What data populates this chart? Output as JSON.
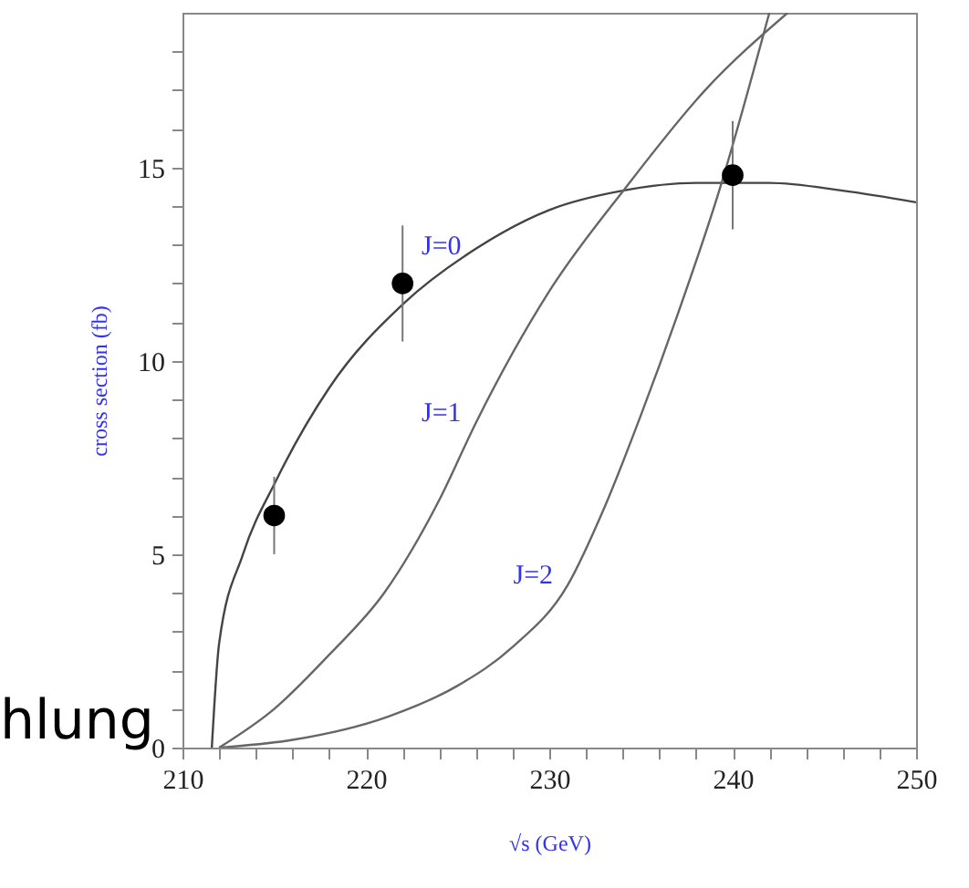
{
  "chart_data": {
    "type": "line",
    "xlabel": "√s (GeV)",
    "ylabel": "cross section (fb)",
    "xlim": [
      210,
      250
    ],
    "ylim": [
      0,
      19
    ],
    "xticks": [
      210,
      {
        "value": 212,
        "label": null
      },
      {
        "value": 214,
        "label": null
      },
      {
        "value": 216,
        "label": null
      },
      {
        "value": 218,
        "label": null
      },
      220,
      {
        "value": 222,
        "label": null
      },
      {
        "value": 224,
        "label": null
      },
      {
        "value": 226,
        "label": null
      },
      {
        "value": 228,
        "label": null
      },
      230,
      {
        "value": 232,
        "label": null
      },
      {
        "value": 234,
        "label": null
      },
      {
        "value": 236,
        "label": null
      },
      {
        "value": 238,
        "label": null
      },
      240,
      {
        "value": 242,
        "label": null
      },
      {
        "value": 244,
        "label": null
      },
      {
        "value": 246,
        "label": null
      },
      {
        "value": 248,
        "label": null
      },
      250
    ],
    "yticks": [
      0,
      {
        "value": 1,
        "label": null
      },
      {
        "value": 2,
        "label": null
      },
      {
        "value": 3,
        "label": null
      },
      {
        "value": 4,
        "label": null
      },
      5,
      {
        "value": 6,
        "label": null
      },
      {
        "value": 7,
        "label": null
      },
      {
        "value": 8,
        "label": null
      },
      {
        "value": 9,
        "label": null
      },
      10,
      {
        "value": 11,
        "label": null
      },
      {
        "value": 12,
        "label": null
      },
      {
        "value": 13,
        "label": null
      },
      {
        "value": 14,
        "label": null
      },
      15,
      {
        "value": 16,
        "label": null
      },
      {
        "value": 17,
        "label": null
      },
      {
        "value": 18,
        "label": null
      }
    ],
    "grid": false,
    "series": [
      {
        "name": "J=0",
        "color": "#444444",
        "x": [
          211.6,
          212,
          213.3,
          215.1,
          218,
          222.1,
          226,
          230,
          234,
          238,
          242,
          246,
          250
        ],
        "values": [
          0,
          2.7,
          5,
          6.9,
          9.3,
          11.5,
          12.9,
          13.9,
          14.4,
          14.6,
          14.6,
          14.4,
          14.1
        ]
      },
      {
        "name": "J=1",
        "color": "#666666",
        "x": [
          212,
          215,
          218,
          221,
          224,
          226,
          230,
          234.2,
          238.5,
          243
        ],
        "values": [
          0,
          1,
          2.4,
          4,
          6.4,
          8.4,
          11.8,
          14.5,
          17,
          19
        ]
      },
      {
        "name": "J=2",
        "color": "#666666",
        "x": [
          212,
          216,
          221.2,
          225,
          228,
          231,
          233,
          235,
          237,
          239.2,
          242
        ],
        "values": [
          0,
          0.2,
          0.8,
          1.6,
          2.6,
          4.2,
          6.2,
          8.6,
          11.2,
          14.3,
          19
        ]
      },
      {
        "type": "scatter",
        "color": "#000000",
        "marker": "circle",
        "x": [
          215,
          222,
          240
        ],
        "values": [
          6,
          12,
          14.8
        ],
        "errors": [
          1,
          1.5,
          1.4
        ]
      }
    ],
    "annotations": [
      "hlung"
    ]
  }
}
